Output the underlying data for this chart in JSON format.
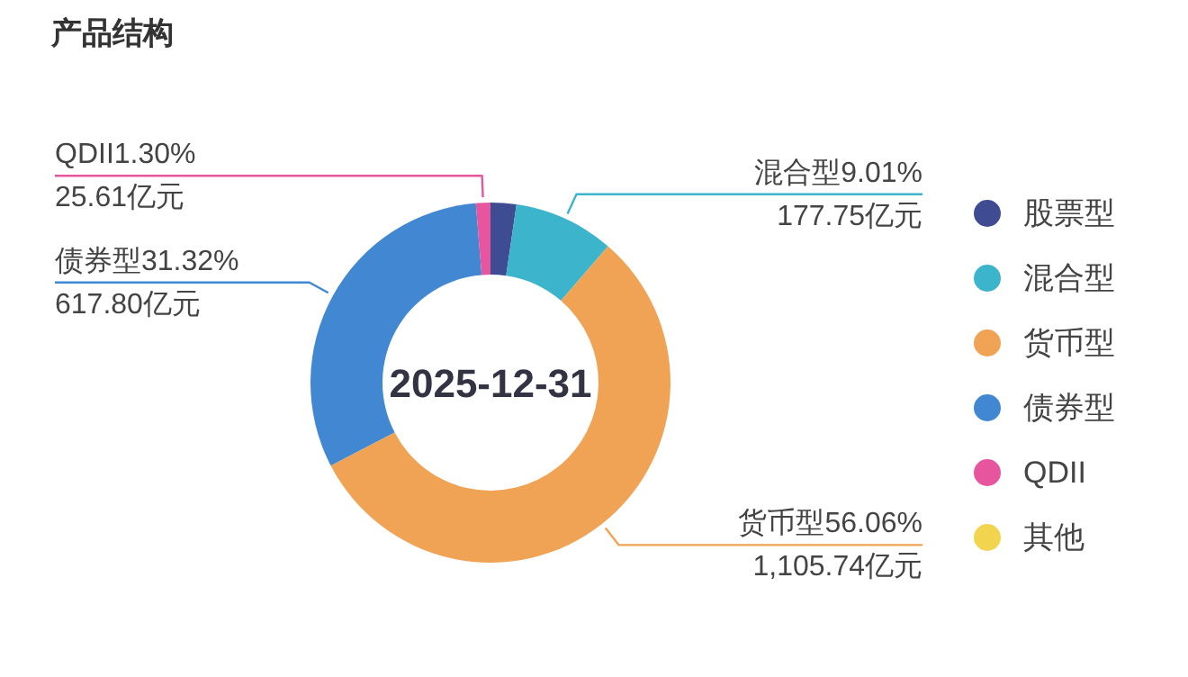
{
  "chart_data": {
    "type": "donut",
    "title": "产品结构",
    "categories": [
      "股票型",
      "混合型",
      "货币型",
      "债券型",
      "QDII",
      "其他"
    ],
    "values": [
      2.31,
      9.01,
      56.06,
      31.32,
      1.3,
      0
    ],
    "colors": [
      "#3f4c92",
      "#3bb4cc",
      "#f0a354",
      "#4287d2",
      "#e8559f",
      "#f2d44f"
    ],
    "value_labels": [
      null,
      "混合型9.01%\n177.75亿元",
      "货币型56.06%\n1,105.74亿元",
      "债券型31.32%\n617.80亿元",
      "QDII1.30%\n25.61亿元",
      null
    ],
    "annotations": [
      "2025-12-31"
    ],
    "legend": "right"
  }
}
